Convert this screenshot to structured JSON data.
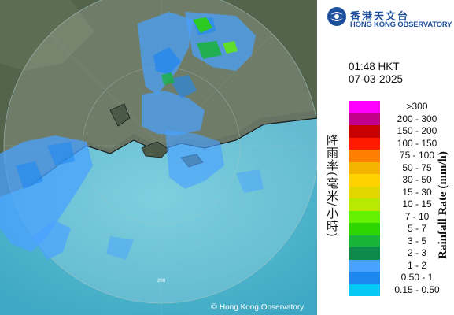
{
  "header": {
    "logo_cn": "香港天文台",
    "logo_en": "HONG KONG OBSERVATORY"
  },
  "timestamp": {
    "time": "01:48 HKT",
    "date": "07-03-2025"
  },
  "legend": {
    "title_cn": "降雨率(毫米/小時)",
    "title_en": "Rainfall Rate (mm/h)",
    "items": [
      {
        "label": ">300",
        "color": "#ff00ff"
      },
      {
        "label": "200 - 300",
        "color": "#c2008a"
      },
      {
        "label": "150 - 200",
        "color": "#c80000"
      },
      {
        "label": "100 - 150",
        "color": "#ff1a00"
      },
      {
        "label": "75 - 100",
        "color": "#ff8000"
      },
      {
        "label": "50 - 75",
        "color": "#f4b400"
      },
      {
        "label": "30 - 50",
        "color": "#ffd200"
      },
      {
        "label": "15 - 30",
        "color": "#e2d800"
      },
      {
        "label": "10 - 15",
        "color": "#b7ea00"
      },
      {
        "label": "7 - 10",
        "color": "#64f000"
      },
      {
        "label": "5 - 7",
        "color": "#2cd400"
      },
      {
        "label": "3 - 5",
        "color": "#17b43a"
      },
      {
        "label": "2 - 3",
        "color": "#0d8a4a"
      },
      {
        "label": "1 - 2",
        "color": "#4aa2ff"
      },
      {
        "label": "0.50 - 1",
        "color": "#1e88f0"
      },
      {
        "label": "0.15 - 0.50",
        "color": "#06c8f5"
      }
    ]
  },
  "map": {
    "range_ring_label": "200",
    "copyright": "Hong Kong Observatory",
    "copyright_symbol": "©"
  }
}
